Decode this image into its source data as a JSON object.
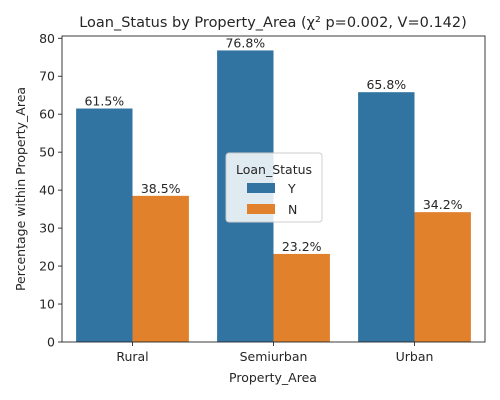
{
  "chart_data": {
    "type": "bar",
    "title": "Loan_Status by Property_Area (χ² p=0.002, V=0.142)",
    "xlabel": "Property_Area",
    "ylabel": "Percentage within Property_Area",
    "categories": [
      "Rural",
      "Semiurban",
      "Urban"
    ],
    "series": [
      {
        "name": "Y",
        "values": [
          61.5,
          76.8,
          65.8
        ],
        "labels": [
          "61.5%",
          "76.8%",
          "65.8%"
        ],
        "color": "#3274a1"
      },
      {
        "name": "N",
        "values": [
          38.5,
          23.2,
          34.2
        ],
        "labels": [
          "38.5%",
          "23.2%",
          "34.2%"
        ],
        "color": "#e1812c"
      }
    ],
    "ylim": [
      0,
      80.6
    ],
    "yticks": [
      0,
      10,
      20,
      30,
      40,
      50,
      60,
      70,
      80
    ],
    "legend": {
      "title": "Loan_Status",
      "placement": "center"
    },
    "grid": false
  }
}
